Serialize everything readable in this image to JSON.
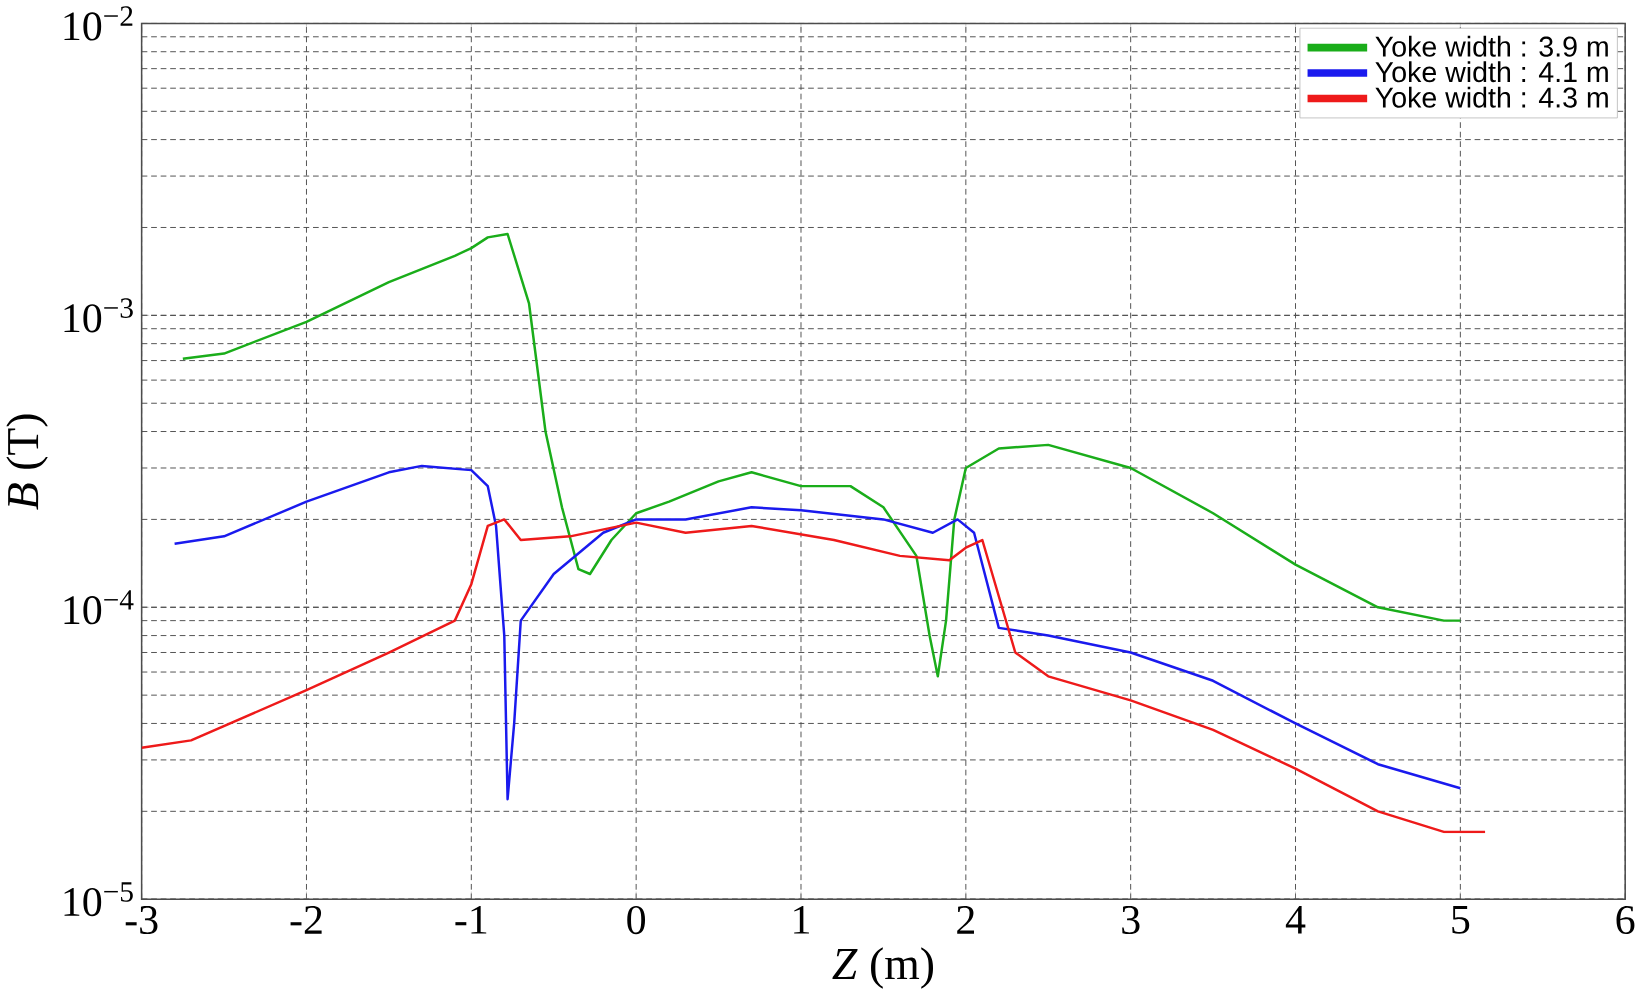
{
  "chart_data": {
    "type": "line",
    "xlabel": "*Z* (m)",
    "ylabel": "*B* (T)",
    "log": "y",
    "grid": true,
    "legend": "top right",
    "line_style": "solid",
    "xlim": [
      -3,
      6
    ],
    "xticks": [
      -3,
      -2,
      -1,
      0,
      1,
      2,
      3,
      4,
      5,
      6
    ],
    "ylim": [
      1e-05,
      0.01
    ],
    "yticks": [
      {
        "value": 1e-05,
        "label": "10$^{−5}$"
      },
      {
        "value": 0.0001,
        "label": "10$^{−4}$"
      },
      {
        "value": 0.001,
        "label": "10$^{−3}$"
      },
      {
        "value": 0.01,
        "label": "10$^{−2}$"
      }
    ],
    "series": [
      {
        "name": "Yoke width : 3.9 m",
        "color": "#1aad1a",
        "x": [
          -2.75,
          -2.5,
          -2,
          -1.5,
          -1.1,
          -1,
          -0.9,
          -0.78,
          -0.65,
          -0.55,
          -0.45,
          -0.35,
          -0.28,
          -0.15,
          0,
          0.2,
          0.5,
          0.7,
          1.0,
          1.3,
          1.5,
          1.7,
          1.78,
          1.83,
          1.88,
          1.93,
          2.0,
          2.2,
          2.5,
          3.0,
          3.5,
          4.0,
          4.5,
          4.9,
          5.0
        ],
        "values": [
          0.00071,
          0.00074,
          0.00095,
          0.0013,
          0.0016,
          0.0017,
          0.00185,
          0.0019,
          0.0011,
          0.0004,
          0.00022,
          0.000135,
          0.00013,
          0.00017,
          0.00021,
          0.00023,
          0.00027,
          0.00029,
          0.00026,
          0.00026,
          0.00022,
          0.00015,
          8e-05,
          5.8e-05,
          9e-05,
          0.0002,
          0.0003,
          0.00035,
          0.00036,
          0.0003,
          0.00021,
          0.00014,
          0.0001,
          9e-05,
          9e-05
        ]
      },
      {
        "name": "Yoke width : 4.1 m",
        "color": "#1a1aee",
        "x": [
          -2.8,
          -2.5,
          -2,
          -1.5,
          -1.3,
          -1.0,
          -0.9,
          -0.85,
          -0.8,
          -0.78,
          -0.74,
          -0.7,
          -0.5,
          -0.2,
          0,
          0.3,
          0.7,
          1.0,
          1.5,
          1.8,
          1.95,
          2.05,
          2.2,
          2.5,
          3,
          3.5,
          4,
          4.5,
          5
        ],
        "values": [
          0.000165,
          0.000175,
          0.00023,
          0.00029,
          0.000305,
          0.000295,
          0.00026,
          0.00019,
          8e-05,
          2.2e-05,
          4e-05,
          9e-05,
          0.00013,
          0.00018,
          0.0002,
          0.0002,
          0.00022,
          0.000215,
          0.0002,
          0.00018,
          0.0002,
          0.00018,
          8.5e-05,
          8e-05,
          7e-05,
          5.6e-05,
          4e-05,
          2.9e-05,
          2.4e-05
        ]
      },
      {
        "name": "Yoke width : 4.3 m",
        "color": "#ee1a1a",
        "x": [
          -3,
          -2.7,
          -2,
          -1.5,
          -1.1,
          -1.0,
          -0.9,
          -0.8,
          -0.7,
          -0.4,
          0,
          0.3,
          0.7,
          1.2,
          1.6,
          1.9,
          2.0,
          2.1,
          2.3,
          2.5,
          3,
          3.5,
          4,
          4.5,
          4.9,
          5.15
        ],
        "values": [
          3.3e-05,
          3.5e-05,
          5.2e-05,
          7e-05,
          9e-05,
          0.00012,
          0.00019,
          0.0002,
          0.00017,
          0.000175,
          0.000195,
          0.00018,
          0.00019,
          0.00017,
          0.00015,
          0.000145,
          0.00016,
          0.00017,
          7e-05,
          5.8e-05,
          4.8e-05,
          3.8e-05,
          2.8e-05,
          2e-05,
          1.7e-05,
          1.7e-05
        ]
      }
    ]
  }
}
